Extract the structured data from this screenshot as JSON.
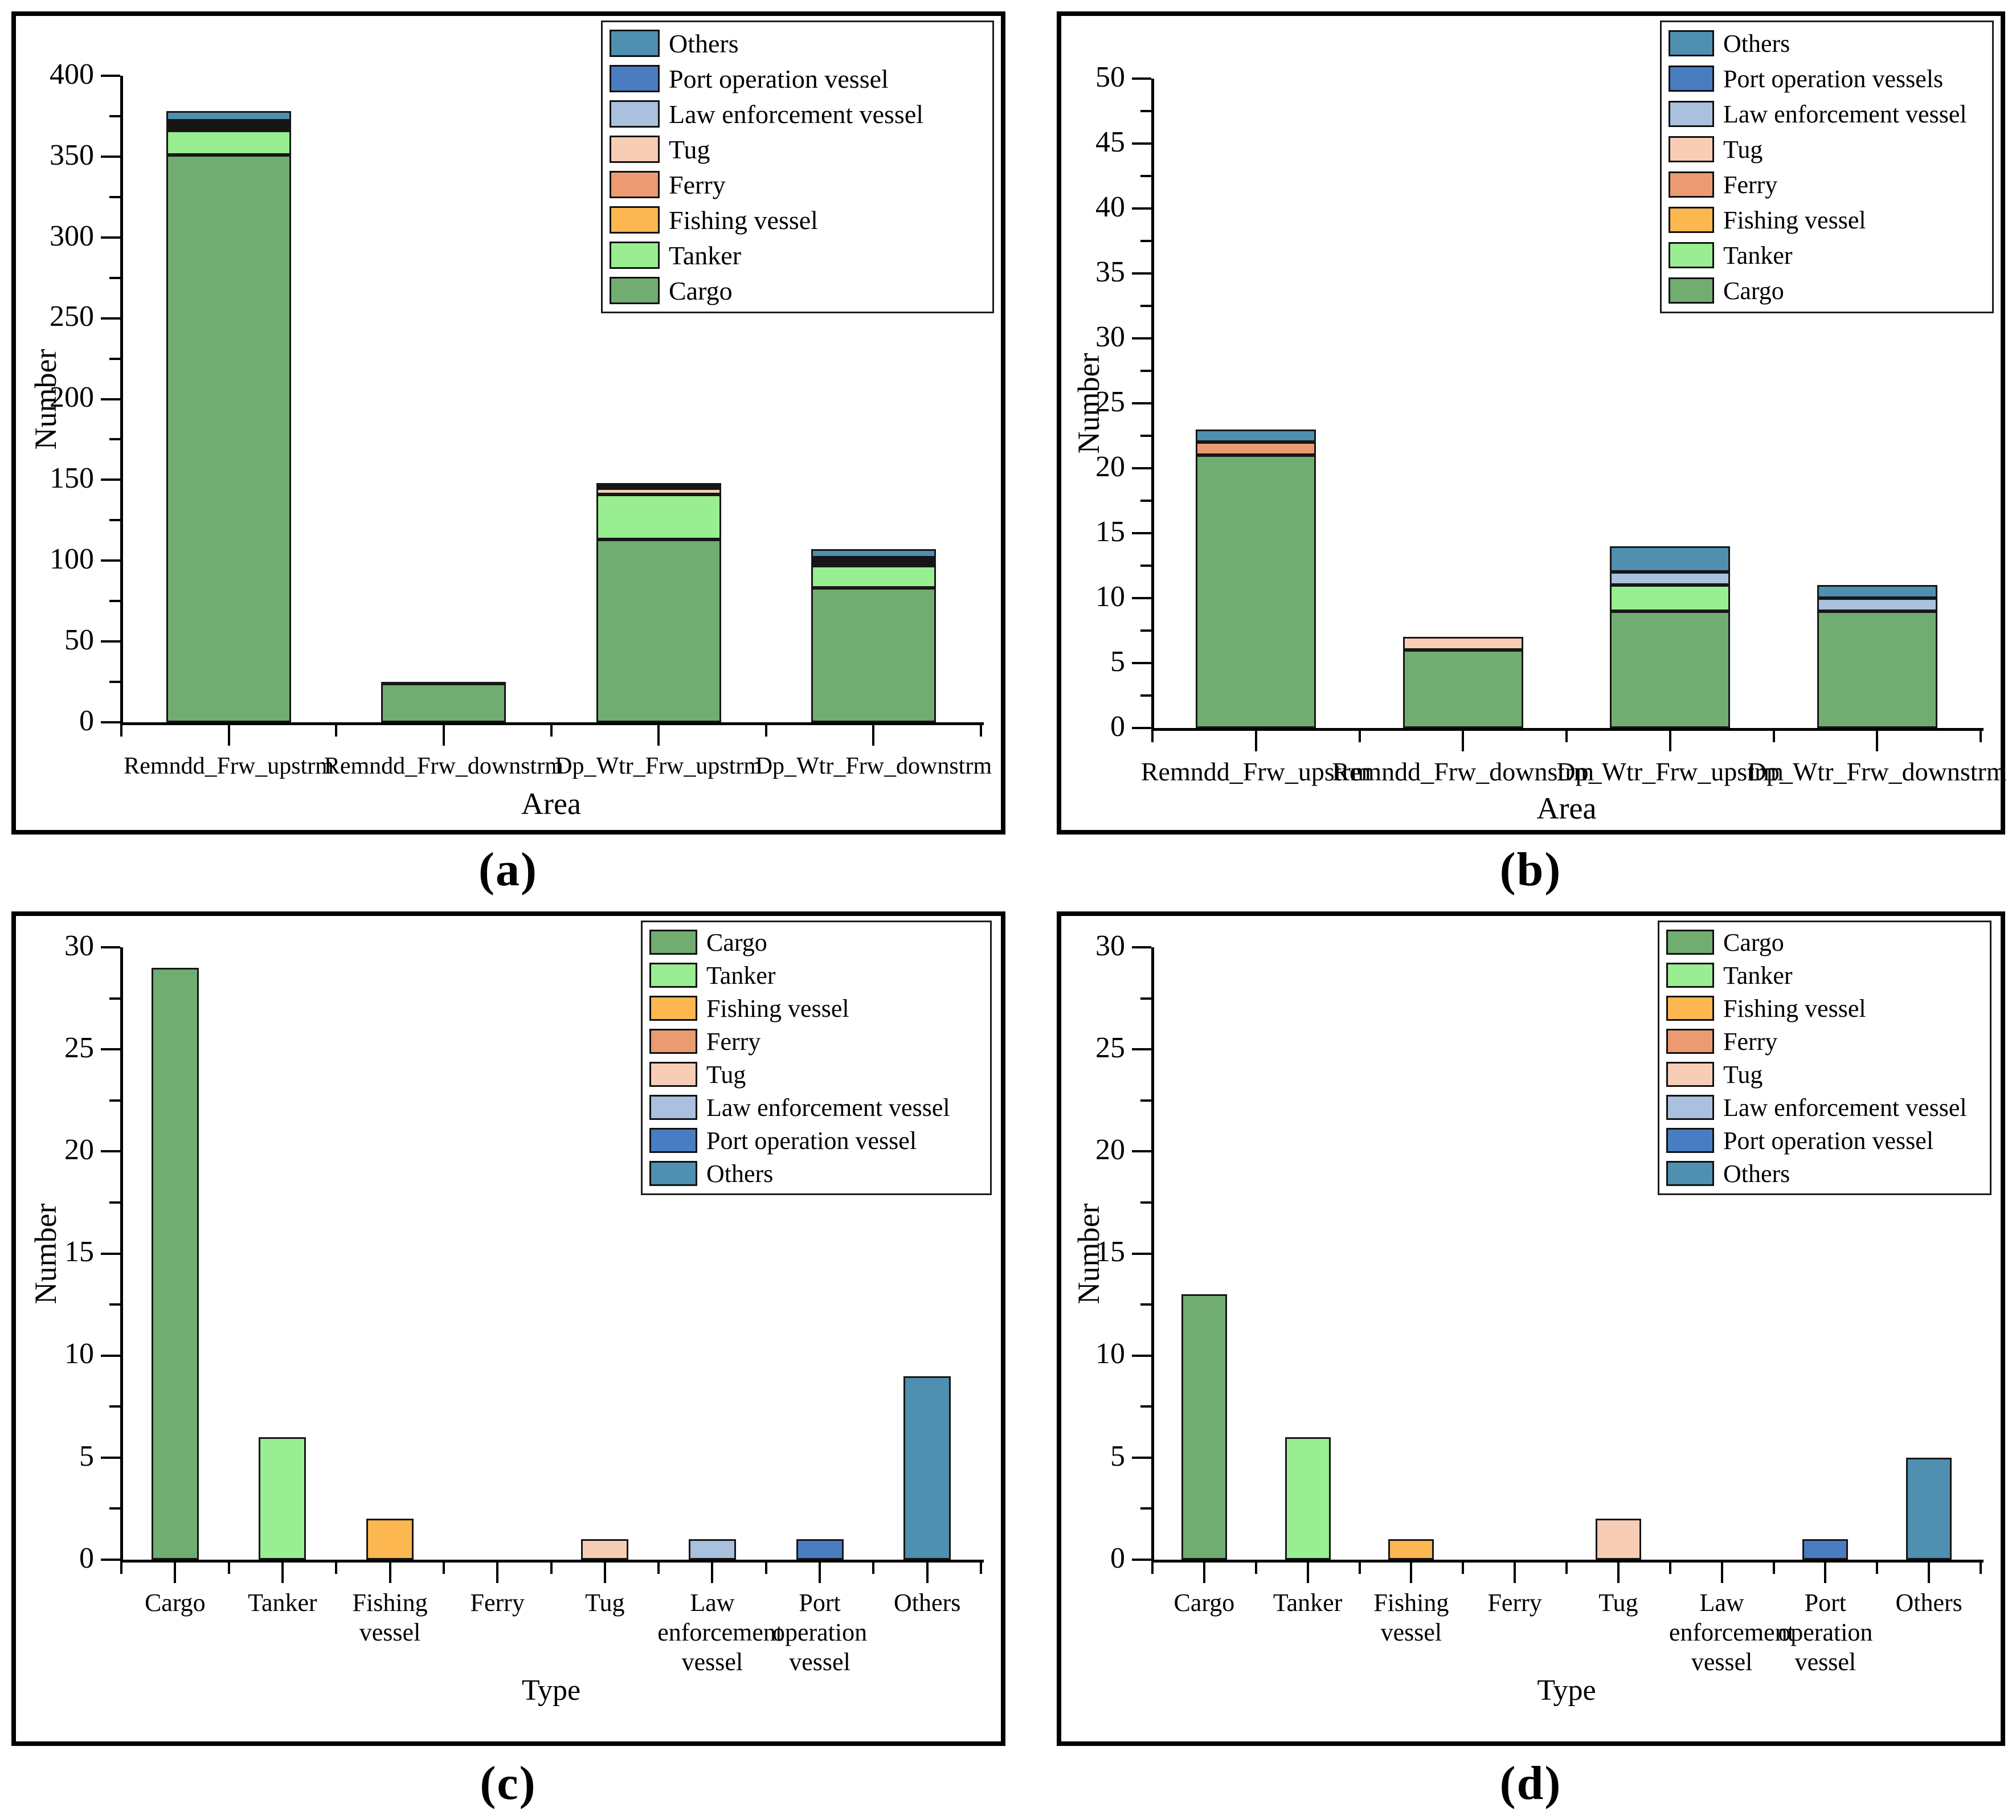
{
  "figure": {
    "captions": {
      "a": "(a)",
      "b": "(b)",
      "c": "(c)",
      "d": "(d)"
    }
  },
  "chart_data": [
    {
      "id": "a",
      "type": "stacked-bar",
      "title": "",
      "xlabel": "Area",
      "ylabel": "Number",
      "ylim": [
        0,
        400
      ],
      "ytick_major": 50,
      "ytick_minor": 25,
      "grid": false,
      "legend_position": "upper-right",
      "categories": [
        "Remndd_Frw_upstrm",
        "Remndd_Frw_downstrm",
        "Dp_Wtr_Frw_upstrm",
        "Dp_Wtr_Frw_downstrm"
      ],
      "bar_totals": [
        378,
        25,
        148,
        107
      ],
      "series": [
        {
          "name": "Cargo",
          "color": "#71AD71",
          "values": [
            351,
            24,
            113,
            83
          ]
        },
        {
          "name": "Tanker",
          "color": "#98EE90",
          "values": [
            15,
            0,
            28,
            14
          ]
        },
        {
          "name": "Fishing vessel",
          "color": "#FCB751",
          "values": [
            2,
            1,
            0,
            2
          ]
        },
        {
          "name": "Ferry",
          "color": "#EC9A71",
          "values": [
            1,
            0,
            0,
            0
          ]
        },
        {
          "name": "Tug",
          "color": "#F8CDB6",
          "values": [
            1,
            0,
            4,
            2
          ]
        },
        {
          "name": "Law enforcement vessel",
          "color": "#A9C0DE",
          "values": [
            1,
            0,
            0,
            1
          ]
        },
        {
          "name": "Port operation vessel",
          "color": "#4A7CC2",
          "values": [
            1,
            0,
            1,
            0
          ]
        },
        {
          "name": "Others",
          "color": "#4F8FB0",
          "values": [
            6,
            0,
            2,
            5
          ]
        }
      ],
      "legend": [
        {
          "label": "Others",
          "color": "#4F8FB0"
        },
        {
          "label": "Port operation vessel",
          "color": "#4A7CC2"
        },
        {
          "label": "Law enforcement vessel",
          "color": "#A9C0DE"
        },
        {
          "label": "Tug",
          "color": "#F8CDB6"
        },
        {
          "label": "Ferry",
          "color": "#EC9A71"
        },
        {
          "label": "Fishing vessel",
          "color": "#FCB751"
        },
        {
          "label": "Tanker",
          "color": "#98EE90"
        },
        {
          "label": "Cargo",
          "color": "#71AD71"
        }
      ]
    },
    {
      "id": "b",
      "type": "stacked-bar",
      "title": "",
      "xlabel": "Area",
      "ylabel": "Number",
      "ylim": [
        0,
        50
      ],
      "ytick_major": 5,
      "ytick_minor": 2.5,
      "grid": false,
      "legend_position": "upper-right",
      "categories": [
        "Remndd_Frw_upstrm",
        "Remndd_Frw_downstrm",
        "Dp_Wtr_Frw_upstrm",
        "Dp_Wtr_Frw_downstrm"
      ],
      "bar_totals": [
        23,
        7,
        14,
        11
      ],
      "series": [
        {
          "name": "Cargo",
          "color": "#71AD71",
          "values": [
            21,
            6,
            9,
            9
          ]
        },
        {
          "name": "Tanker",
          "color": "#98EE90",
          "values": [
            0,
            0,
            2,
            0
          ]
        },
        {
          "name": "Fishing vessel",
          "color": "#FCB751",
          "values": [
            0,
            0,
            0,
            0
          ]
        },
        {
          "name": "Ferry",
          "color": "#EC9A71",
          "values": [
            1,
            0,
            0,
            0
          ]
        },
        {
          "name": "Tug",
          "color": "#F8CDB6",
          "values": [
            0,
            1,
            0,
            0
          ]
        },
        {
          "name": "Law enforcement vessel",
          "color": "#A9C0DE",
          "values": [
            0,
            0,
            1,
            1
          ]
        },
        {
          "name": "Port operation vessels",
          "color": "#4A7CC2",
          "values": [
            0,
            0,
            0,
            0
          ]
        },
        {
          "name": "Others",
          "color": "#4F8FB0",
          "values": [
            1,
            0,
            2,
            1
          ]
        }
      ],
      "legend": [
        {
          "label": "Others",
          "color": "#4F8FB0"
        },
        {
          "label": "Port operation vessels",
          "color": "#4A7CC2"
        },
        {
          "label": "Law enforcement vessel",
          "color": "#A9C0DE"
        },
        {
          "label": "Tug",
          "color": "#F8CDB6"
        },
        {
          "label": "Ferry",
          "color": "#EC9A71"
        },
        {
          "label": "Fishing vessel",
          "color": "#FCB751"
        },
        {
          "label": "Tanker",
          "color": "#98EE90"
        },
        {
          "label": "Cargo",
          "color": "#71AD71"
        }
      ]
    },
    {
      "id": "c",
      "type": "bar",
      "title": "",
      "xlabel": "Type",
      "ylabel": "Number",
      "ylim": [
        0,
        30
      ],
      "ytick_major": 5,
      "ytick_minor": 2.5,
      "grid": false,
      "legend_position": "upper-right",
      "categories": [
        "Cargo",
        "Tanker",
        "Fishing vessel",
        "Ferry",
        "Tug",
        "Law enforcement vessel",
        "Port operation vessel",
        "Others"
      ],
      "values": [
        29,
        6,
        2,
        0,
        1,
        1,
        1,
        9
      ],
      "colors": [
        "#71AD71",
        "#98EE90",
        "#FCB751",
        "#EC9A71",
        "#F8CDB6",
        "#A9C0DE",
        "#4A7CC2",
        "#4F8FB0"
      ],
      "legend": [
        {
          "label": "Cargo",
          "color": "#71AD71"
        },
        {
          "label": "Tanker",
          "color": "#98EE90"
        },
        {
          "label": "Fishing vessel",
          "color": "#FCB751"
        },
        {
          "label": "Ferry",
          "color": "#EC9A71"
        },
        {
          "label": "Tug",
          "color": "#F8CDB6"
        },
        {
          "label": "Law enforcement vessel",
          "color": "#A9C0DE"
        },
        {
          "label": "Port operation vessel",
          "color": "#4A7CC2"
        },
        {
          "label": "Others",
          "color": "#4F8FB0"
        }
      ]
    },
    {
      "id": "d",
      "type": "bar",
      "title": "",
      "xlabel": "Type",
      "ylabel": "Number",
      "ylim": [
        0,
        30
      ],
      "ytick_major": 5,
      "ytick_minor": 2.5,
      "grid": false,
      "legend_position": "upper-right",
      "categories": [
        "Cargo",
        "Tanker",
        "Fishing vessel",
        "Ferry",
        "Tug",
        "Law enforcement vessel",
        "Port operation vessel",
        "Others"
      ],
      "values": [
        13,
        6,
        1,
        0,
        2,
        0,
        1,
        5
      ],
      "colors": [
        "#71AD71",
        "#98EE90",
        "#FCB751",
        "#EC9A71",
        "#F8CDB6",
        "#A9C0DE",
        "#4A7CC2",
        "#4F8FB0"
      ],
      "legend": [
        {
          "label": "Cargo",
          "color": "#71AD71"
        },
        {
          "label": "Tanker",
          "color": "#98EE90"
        },
        {
          "label": "Fishing vessel",
          "color": "#FCB751"
        },
        {
          "label": "Ferry",
          "color": "#EC9A71"
        },
        {
          "label": "Tug",
          "color": "#F8CDB6"
        },
        {
          "label": "Law enforcement vessel",
          "color": "#A9C0DE"
        },
        {
          "label": "Port operation vessel",
          "color": "#4A7CC2"
        },
        {
          "label": "Others",
          "color": "#4F8FB0"
        }
      ]
    }
  ]
}
